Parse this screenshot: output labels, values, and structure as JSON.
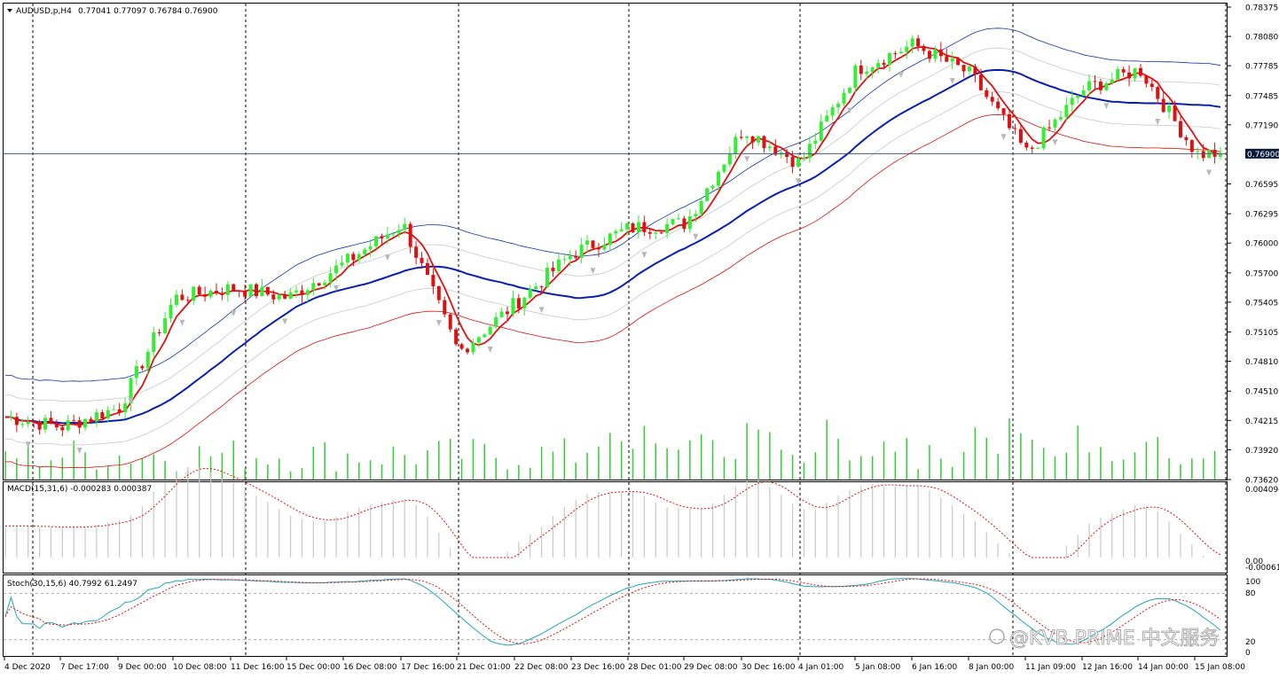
{
  "window": {
    "symbol_header": "AUDUSD,p,H4",
    "ohlc_header": "0.77041 0.77097 0.76784 0.76900",
    "current_price": "0.76900",
    "watermark": "@KVB PRIME 中文服务"
  },
  "colors": {
    "bull_candle": "#33ee33",
    "bear_candle": "#dd1111",
    "band_outer_top": "#1133aa",
    "band_outer_bottom": "#dd1111",
    "mid_line": "#0a1fb0",
    "fast_ma": "#dd1111",
    "volume": "#33cc33",
    "macd_hist": "#c8c8c8",
    "macd_signal": "#dd1111",
    "stoch_main": "#22a6b8",
    "stoch_signal": "#dd1111",
    "grid_vertical": "#000000"
  },
  "time_labels": [
    "4 Dec 2020",
    "7 Dec 17:00",
    "9 Dec 00:00",
    "10 Dec 08:00",
    "11 Dec 16:00",
    "15 Dec 00:00",
    "16 Dec 08:00",
    "17 Dec 16:00",
    "21 Dec 01:00",
    "22 Dec 08:00",
    "23 Dec 16:00",
    "28 Dec 01:00",
    "29 Dec 08:00",
    "30 Dec 16:00",
    "4 Jan 01:00",
    "5 Jan 08:00",
    "6 Jan 16:00",
    "8 Jan 00:00",
    "11 Jan 09:00",
    "12 Jan 16:00",
    "14 Jan 00:00",
    "15 Jan 08:00"
  ],
  "price_labels": [
    "0.78375",
    "0.78080",
    "0.77785",
    "0.77485",
    "0.77190",
    "0.76595",
    "0.76295",
    "0.76000",
    "0.75700",
    "0.75405",
    "0.75105",
    "0.74810",
    "0.74510",
    "0.74215",
    "0.73920",
    "0.73620"
  ],
  "macd": {
    "header": "MACD(15,31,6) -0.000283 0.000387",
    "axis_labels": [
      "0.004098",
      "0.00",
      "-0.00061"
    ]
  },
  "stoch": {
    "header": "Stoch(30,15,6) 40.7992 61.2497",
    "axis_labels": [
      "100",
      "80",
      "20",
      "0"
    ]
  },
  "chart_data": {
    "type": "candlestick",
    "title": "AUDUSD,p,H4",
    "timeframe": "H4",
    "x_range": [
      "4 Dec 2020",
      "15 Jan 08:00"
    ],
    "ylim": [
      0.7362,
      0.78375
    ],
    "current_price": 0.769,
    "price_path_keyframes": [
      {
        "t": "4 Dec 2020",
        "close": 0.7425
      },
      {
        "t": "7 Dec 17:00",
        "close": 0.7415
      },
      {
        "t": "9 Dec 00:00",
        "close": 0.7435
      },
      {
        "t": "10 Dec 08:00",
        "close": 0.7545
      },
      {
        "t": "11 Dec 16:00",
        "close": 0.7555
      },
      {
        "t": "15 Dec 00:00",
        "close": 0.7545
      },
      {
        "t": "16 Dec 08:00",
        "close": 0.758
      },
      {
        "t": "17 Dec 16:00",
        "close": 0.762
      },
      {
        "t": "21 Dec 01:00",
        "close": 0.749
      },
      {
        "t": "22 Dec 08:00",
        "close": 0.754
      },
      {
        "t": "23 Dec 16:00",
        "close": 0.759
      },
      {
        "t": "28 Dec 01:00",
        "close": 0.7615
      },
      {
        "t": "29 Dec 08:00",
        "close": 0.762
      },
      {
        "t": "30 Dec 16:00",
        "close": 0.7715
      },
      {
        "t": "4 Jan 01:00",
        "close": 0.768
      },
      {
        "t": "5 Jan 08:00",
        "close": 0.7775
      },
      {
        "t": "6 Jan 16:00",
        "close": 0.78
      },
      {
        "t": "8 Jan 00:00",
        "close": 0.777
      },
      {
        "t": "11 Jan 09:00",
        "close": 0.769
      },
      {
        "t": "12 Jan 16:00",
        "close": 0.7755
      },
      {
        "t": "14 Jan 00:00",
        "close": 0.7775
      },
      {
        "t": "15 Jan 08:00",
        "close": 0.769
      }
    ],
    "last_candle": {
      "open": 0.77041,
      "high": 0.77097,
      "low": 0.76784,
      "close": 0.769
    },
    "indicators": {
      "macd": {
        "fast": 15,
        "slow": 31,
        "signal": 6,
        "main": -0.000283,
        "signal_value": 0.000387,
        "ylim": [
          -0.00061,
          0.004098
        ]
      },
      "stochastic": {
        "k": 30,
        "d": 15,
        "slowing": 6,
        "main": 40.7992,
        "signal": 61.2497,
        "levels": [
          20,
          80
        ],
        "ylim": [
          0,
          100
        ]
      }
    },
    "grid": false
  }
}
